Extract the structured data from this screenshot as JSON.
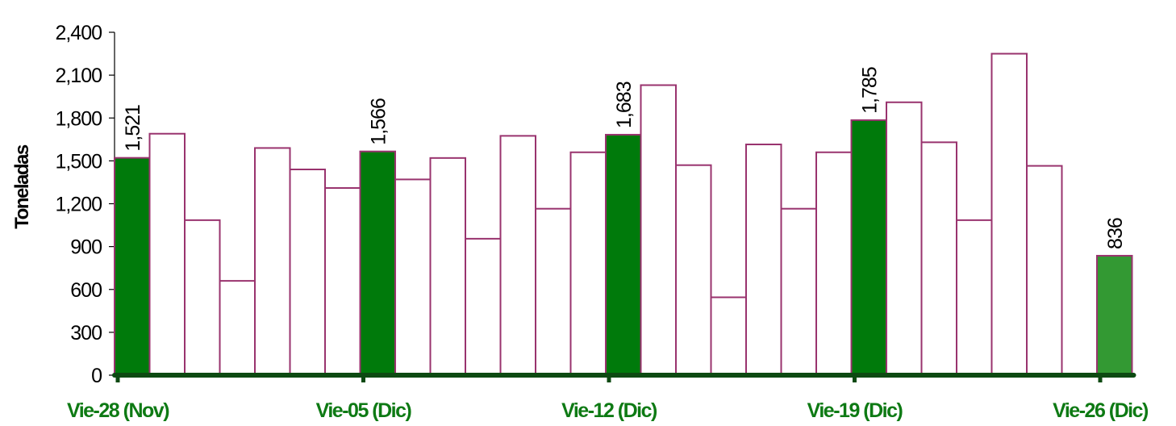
{
  "chart_data": {
    "type": "bar",
    "ylabel": "Toneladas",
    "ylim": [
      0,
      2400
    ],
    "yticks": [
      "0",
      "300",
      "600",
      "900",
      "1,200",
      "1,500",
      "1,800",
      "2,100",
      "2,400"
    ],
    "ytick_values": [
      0,
      300,
      600,
      900,
      1200,
      1500,
      1800,
      2100,
      2400
    ],
    "x_labels": [
      {
        "index": 0,
        "label": "Vie-28 (Nov)"
      },
      {
        "index": 7,
        "label": "Vie-05 (Dic)"
      },
      {
        "index": 14,
        "label": "Vie-12 (Dic)"
      },
      {
        "index": 21,
        "label": "Vie-19 (Dic)"
      },
      {
        "index": 28,
        "label": "Vie-26 (Dic)"
      }
    ],
    "values": [
      1521,
      1690,
      1085,
      660,
      1590,
      1440,
      1310,
      1566,
      1370,
      1520,
      955,
      1675,
      1165,
      1560,
      1683,
      2030,
      1470,
      545,
      1615,
      1165,
      1560,
      1785,
      1910,
      1630,
      1085,
      2250,
      1465,
      null,
      836
    ],
    "data_labels": [
      {
        "index": 0,
        "text": "1,521"
      },
      {
        "index": 7,
        "text": "1,566"
      },
      {
        "index": 14,
        "text": "1,683"
      },
      {
        "index": 21,
        "text": "1,785"
      },
      {
        "index": 28,
        "text": "836"
      }
    ],
    "highlighted_indices": [
      0,
      7,
      14,
      21,
      28
    ],
    "grid": false,
    "colors": {
      "highlight": "#007A0B",
      "last_highlight": "#339933",
      "bar_fill": "#FFFFFF",
      "bar_stroke": "#99336E",
      "axis": "#0D4A12",
      "xlabel": "#0E7A14"
    }
  }
}
